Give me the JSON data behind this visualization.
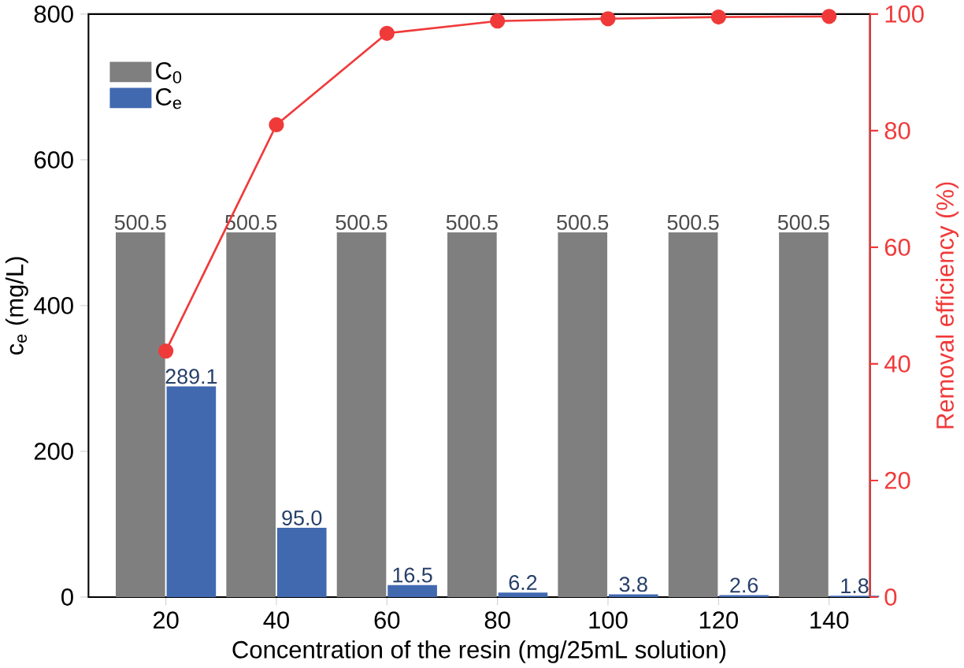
{
  "chart_data": {
    "type": "bar",
    "xlabel": "Concentration of the resin (mg/25mL solution)",
    "ylabel": "c$_{e}$ (mg/L)",
    "y2label": "Removal efficiency (%)",
    "categories": [
      "20",
      "40",
      "60",
      "80",
      "100",
      "120",
      "140"
    ],
    "series": [
      {
        "name": "C$_{0}$",
        "color": "#7f7f7f",
        "values": [
          500.5,
          500.5,
          500.5,
          500.5,
          500.5,
          500.5,
          500.5
        ],
        "value_labels": [
          "500.5",
          "500.5",
          "500.5",
          "500.5",
          "500.5",
          "500.5",
          "500.5"
        ]
      },
      {
        "name": "C$_{e}$",
        "color": "#4169b0",
        "values": [
          289.1,
          95.0,
          16.5,
          6.2,
          3.8,
          2.6,
          1.8
        ],
        "value_labels": [
          "289.1",
          "95.0",
          "16.5",
          "6.2",
          "3.8",
          "2.6",
          "1.8"
        ]
      },
      {
        "type": "line",
        "axis": "y2",
        "color": "#f03a3a",
        "marker": "circle",
        "values": [
          42.2,
          81.0,
          96.7,
          98.8,
          99.2,
          99.5,
          99.6
        ]
      }
    ],
    "ylim": [
      0,
      800
    ],
    "yticks": [
      0,
      200,
      400,
      600,
      800
    ],
    "y2lim": [
      0,
      100
    ],
    "y2ticks": [
      0,
      20,
      40,
      60,
      80,
      100
    ],
    "legend": "top left"
  }
}
